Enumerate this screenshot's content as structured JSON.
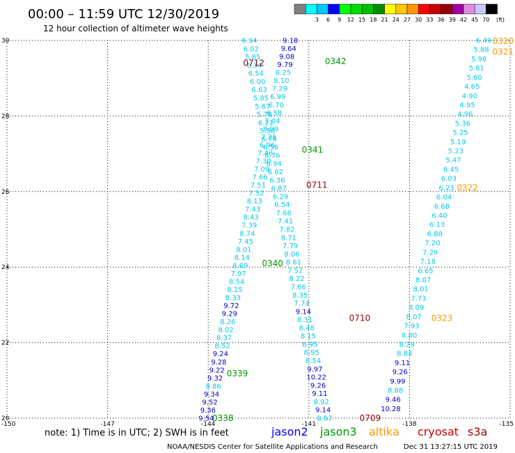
{
  "title": "00:00 – 11:59 UTC 12/30/2019",
  "subtitle": "12 hour collection of altimeter wave heights",
  "legend": {
    "unit": "(ft)",
    "bins": [
      {
        "label": "",
        "color": "#808080"
      },
      {
        "label": "3",
        "color": "#00ffff"
      },
      {
        "label": "6",
        "color": "#00c8ff"
      },
      {
        "label": "9",
        "color": "#0000ff"
      },
      {
        "label": "12",
        "color": "#00ff00"
      },
      {
        "label": "15",
        "color": "#00dc00"
      },
      {
        "label": "18",
        "color": "#00c000"
      },
      {
        "label": "21",
        "color": "#008c00"
      },
      {
        "label": "24",
        "color": "#ffff00"
      },
      {
        "label": "27",
        "color": "#ffc800"
      },
      {
        "label": "30",
        "color": "#ff9600"
      },
      {
        "label": "33",
        "color": "#ff0000"
      },
      {
        "label": "36",
        "color": "#c80000"
      },
      {
        "label": "39",
        "color": "#960000"
      },
      {
        "label": "42",
        "color": "#a000a0"
      },
      {
        "label": "45",
        "color": "#e08ce0"
      },
      {
        "label": "70",
        "color": "#c8c8ff"
      },
      {
        "label": "",
        "color": "#000000"
      }
    ]
  },
  "colors": {
    "low": "#00c8f0",
    "mid": "#0000c8",
    "jason2": "#0000ff",
    "jason3": "#009600",
    "altika": "#ff9600",
    "cryosat": "#c80000",
    "s3a": "#960000"
  },
  "note": "note: 1) Time is in UTC; 2) SWH is in feet",
  "satellites": [
    {
      "name": "jason2",
      "color": "#0000ff"
    },
    {
      "name": "jason3",
      "color": "#009600"
    },
    {
      "name": "altika",
      "color": "#ff9600"
    },
    {
      "name": "cryosat",
      "color": "#c80000"
    },
    {
      "name": "s3a",
      "color": "#960000"
    }
  ],
  "credit": "NOAA/NESDIS Center for Satellite Applications and Research",
  "timestamp": "Dec 31 13:27:15 UTC 2019",
  "chart_data": {
    "type": "scatter",
    "xlim": [
      -150,
      -135
    ],
    "ylim": [
      20,
      30
    ],
    "x_ticks": [
      "-150",
      "-147",
      "-144",
      "-141",
      "-138",
      "-135"
    ],
    "y_ticks": [
      "20",
      "22",
      "24",
      "26",
      "28",
      "30"
    ],
    "tracks": [
      {
        "start": [
          -144.06,
          20.0
        ],
        "end": [
          -141.55,
          30.0
        ],
        "values": [
          "9.54",
          "9.36",
          "9.52",
          "9.34",
          "8.86",
          "9.32",
          "9.22",
          "9.28",
          "9.24",
          "8.52",
          "8.37",
          "8.02",
          "8.26",
          "9.29",
          "9.72",
          "8.33",
          "8.15",
          "8.54",
          "7.97",
          "8.69",
          "8.14",
          "8.01",
          "7.45",
          "8.74",
          "7.39",
          "8.43",
          "7.43",
          "8.13",
          "7.52",
          "7.51",
          "7.66",
          "7.09",
          "7.30",
          "7.46",
          "6.96",
          "7.26",
          "8.09",
          "7.04",
          "6.58",
          "6.70",
          "6.99",
          "7.29",
          "8.10",
          "8.25",
          "9.79",
          "9.08",
          "9.64",
          "9.18"
        ]
      },
      {
        "start": [
          -140.53,
          20.0
        ],
        "end": [
          -142.77,
          30.0
        ],
        "values": [
          "8.67",
          "9.14",
          "8.92",
          "9.11",
          "9.26",
          "10.22",
          "9.97",
          "8.54",
          "8.95",
          "8.95",
          "8.15",
          "8.48",
          "8.31",
          "9.14",
          "7.74",
          "8.35",
          "7.66",
          "8.22",
          "7.52",
          "8.61",
          "8.06",
          "7.79",
          "8.71",
          "7.82",
          "7.41",
          "7.66",
          "6.54",
          "6.29",
          "6.87",
          "6.36",
          "6.62",
          "6.94",
          "6.76",
          "6.56",
          "6.74",
          "5.58",
          "6.21",
          "5.78",
          "5.67",
          "5.85",
          "6.63",
          "6.00",
          "6.54",
          "6.34",
          "5.85",
          "6.02",
          "6.94"
        ]
      },
      {
        "start": [
          -138.56,
          20.25
        ],
        "end": [
          -135.79,
          30.0
        ],
        "values": [
          "10.28",
          "9.46",
          "8.88",
          "9.99",
          "9.26",
          "9.11",
          "8.84",
          "8.29",
          "8.80",
          "7.93",
          "8.07",
          "8.09",
          "7.73",
          "8.01",
          "8.07",
          "6.65",
          "7.18",
          "7.29",
          "7.20",
          "6.88",
          "6.13",
          "6.40",
          "6.68",
          "6.04",
          "6.23",
          "6.03",
          "6.45",
          "5.47",
          "5.23",
          "5.19",
          "5.25",
          "5.36",
          "4.96",
          "4.95",
          "4.90",
          "4.65",
          "5.60",
          "5.81",
          "5.98",
          "5.88",
          "6.49"
        ]
      }
    ],
    "pass_labels": [
      {
        "label": "0338",
        "x": -143.88,
        "y": 20.0,
        "satellite": "jason3"
      },
      {
        "label": "0339",
        "x": -143.45,
        "y": 21.18,
        "satellite": "jason3"
      },
      {
        "label": "0340",
        "x": -142.4,
        "y": 24.1,
        "satellite": "jason3"
      },
      {
        "label": "0341",
        "x": -141.21,
        "y": 27.1,
        "satellite": "jason3"
      },
      {
        "label": "0342",
        "x": -140.52,
        "y": 29.45,
        "satellite": "jason3"
      },
      {
        "label": "0709",
        "x": -139.49,
        "y": 20.0,
        "satellite": "s3a"
      },
      {
        "label": "0710",
        "x": -139.8,
        "y": 22.65,
        "satellite": "s3a"
      },
      {
        "label": "0711",
        "x": -141.08,
        "y": 26.17,
        "satellite": "s3a"
      },
      {
        "label": "0712",
        "x": -142.96,
        "y": 29.4,
        "satellite": "s3a"
      },
      {
        "label": "0320",
        "x": -135.0,
        "y": 29.98,
        "satellite": "altika"
      },
      {
        "label": "0321",
        "x": -135.0,
        "y": 29.7,
        "satellite": "altika"
      },
      {
        "label": "0322",
        "x": -136.59,
        "y": 26.1,
        "satellite": "altika"
      },
      {
        "label": "0323",
        "x": -137.35,
        "y": 22.65,
        "satellite": "altika"
      }
    ]
  }
}
